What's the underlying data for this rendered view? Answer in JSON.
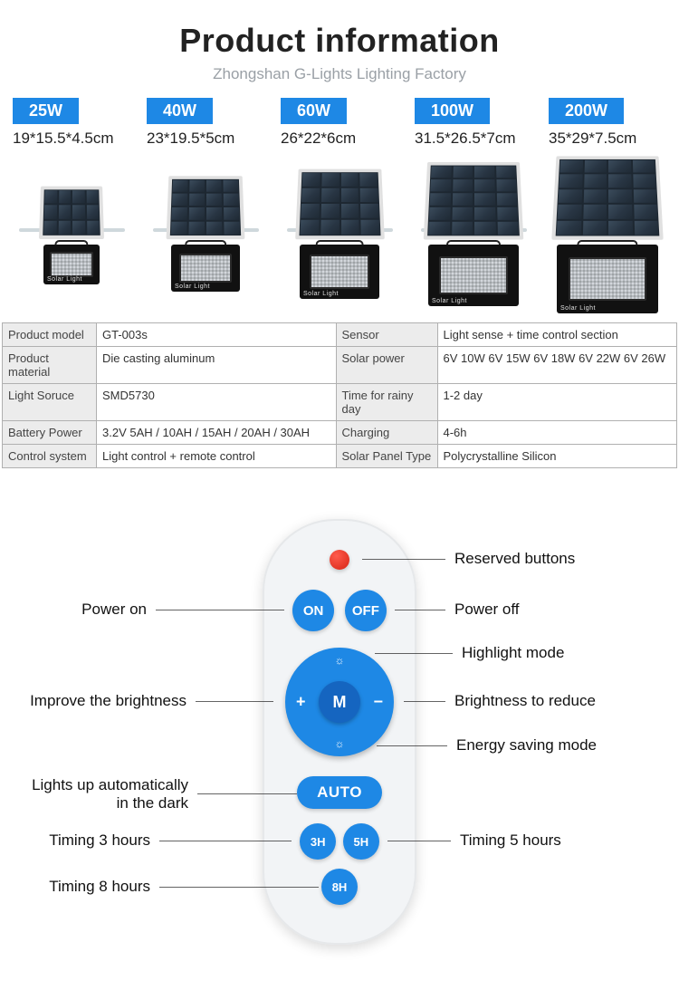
{
  "header": {
    "title": "Product information",
    "subtitle": "Zhongshan G-Lights Lighting Factory",
    "title_fontsize": 36,
    "subtitle_color": "#9aa0a6"
  },
  "colors": {
    "badge_bg": "#1e88e5",
    "badge_text": "#ffffff",
    "panel_frame": "#e0e0e0",
    "panel_dark": "#283543",
    "table_border": "#b0b0b0",
    "table_key_bg": "#ececec",
    "remote_body": "#f2f4f6",
    "remote_button": "#1e88e5",
    "remote_led": "#d62414"
  },
  "variants": [
    {
      "watt": "25W",
      "dims": "19*15.5*4.5cm",
      "panel_rows": 3
    },
    {
      "watt": "40W",
      "dims": "23*19.5*5cm",
      "panel_rows": 4
    },
    {
      "watt": "60W",
      "dims": "26*22*6cm",
      "panel_rows": 4
    },
    {
      "watt": "100W",
      "dims": "31.5*26.5*7cm",
      "panel_rows": 5
    },
    {
      "watt": "200W",
      "dims": "35*29*7.5cm",
      "panel_rows": 5
    }
  ],
  "floodlight_label": "Solar Light",
  "spec_rows": [
    {
      "k1": "Product model",
      "v1": "GT-003s",
      "k2": "Sensor",
      "v2": "Light sense + time control section"
    },
    {
      "k1": "Product material",
      "v1": "Die casting aluminum",
      "k2": "Solar power",
      "v2": "6V 10W  6V 15W  6V 18W  6V 22W 6V 26W"
    },
    {
      "k1": "Light Soruce",
      "v1": "SMD5730",
      "k2": "Time for rainy day",
      "v2": "1-2 day"
    },
    {
      "k1": "Battery Power",
      "v1": "3.2V 5AH / 10AH / 15AH / 20AH / 30AH",
      "k2": "Charging",
      "v2": "4-6h"
    },
    {
      "k1": "Control system",
      "v1": " Light control + remote control",
      "k2": "Solar Panel Type",
      "v2": " Polycrystalline Silicon"
    }
  ],
  "remote": {
    "buttons": {
      "on": "ON",
      "off": "OFF",
      "center": "M",
      "plus": "+",
      "minus": "−",
      "auto": "AUTO",
      "h3": "3H",
      "h5": "5H",
      "h8": "8H",
      "up_glyph": "☼",
      "down_glyph": "☼"
    },
    "callouts": {
      "reserved": "Reserved buttons",
      "power_on": "Power on",
      "power_off": "Power off",
      "highlight": "Highlight mode",
      "improve": "Improve the brightness",
      "reduce": "Brightness to reduce",
      "energy": "Energy saving mode",
      "auto": "Lights up automatically\nin the dark",
      "t3": "Timing 3 hours",
      "t5": "Timing 5 hours",
      "t8": "Timing 8 hours"
    }
  }
}
